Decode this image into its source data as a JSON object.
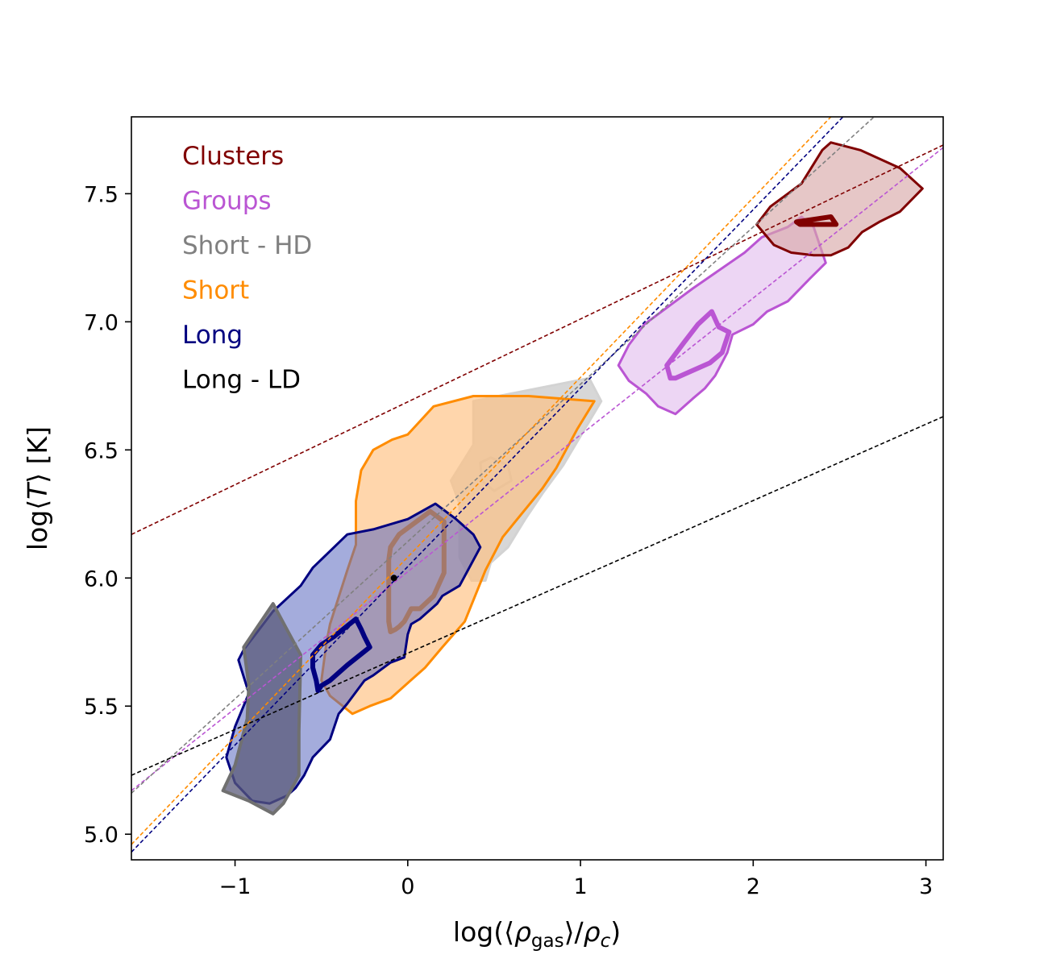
{
  "chart_data": {
    "type": "scatter",
    "xlabel": "log(⟨ρgas⟩/ρc)",
    "ylabel": "log⟨T⟩ [K]",
    "xlim": [
      -1.6,
      3.1
    ],
    "ylim": [
      4.9,
      7.8
    ],
    "xticks": [
      -1,
      0,
      1,
      2,
      3
    ],
    "xtick_labels": [
      "−1",
      "0",
      "1",
      "2",
      "3"
    ],
    "yticks": [
      5.0,
      5.5,
      6.0,
      6.5,
      7.0,
      7.5
    ],
    "ytick_labels": [
      "5.0",
      "5.5",
      "6.0",
      "6.5",
      "7.0",
      "7.5"
    ],
    "grid": false,
    "legend_position": "top-left",
    "legend": [
      {
        "label": "Clusters",
        "color": "#800000"
      },
      {
        "label": "Groups",
        "color": "#ba55d3"
      },
      {
        "label": "Short - HD",
        "color": "#808080"
      },
      {
        "label": "Short",
        "color": "#ff8c00"
      },
      {
        "label": "Long",
        "color": "#000080"
      },
      {
        "label": "Long - LD",
        "color": "#000000"
      }
    ],
    "fit_lines": [
      {
        "series": "Clusters",
        "color": "#800000",
        "points": [
          [
            -1.6,
            6.17
          ],
          [
            3.1,
            7.69
          ]
        ]
      },
      {
        "series": "Groups",
        "color": "#ba55d3",
        "points": [
          [
            -1.6,
            5.17
          ],
          [
            3.1,
            7.68
          ]
        ]
      },
      {
        "series": "Short - HD",
        "color": "#808080",
        "points": [
          [
            -1.6,
            5.16
          ],
          [
            2.7,
            7.8
          ]
        ]
      },
      {
        "series": "Short",
        "color": "#ff8c00",
        "points": [
          [
            -1.6,
            4.96
          ],
          [
            2.45,
            7.8
          ]
        ]
      },
      {
        "series": "Long",
        "color": "#000080",
        "points": [
          [
            -1.6,
            4.93
          ],
          [
            2.52,
            7.8
          ]
        ]
      },
      {
        "series": "Long - LD",
        "color": "#000000",
        "points": [
          [
            -1.6,
            5.23
          ],
          [
            3.1,
            6.63
          ]
        ]
      }
    ],
    "contours": [
      {
        "series": "Short - HD",
        "level": "outer",
        "fill": "#d3d3d3",
        "fill_opacity": 0.9,
        "stroke": "#d3d3d3",
        "stroke_width": 3,
        "points": [
          [
            0.25,
            6.38
          ],
          [
            0.38,
            6.52
          ],
          [
            0.38,
            6.69
          ],
          [
            0.6,
            6.72
          ],
          [
            1.05,
            6.78
          ],
          [
            1.12,
            6.69
          ],
          [
            0.9,
            6.44
          ],
          [
            0.78,
            6.33
          ],
          [
            0.68,
            6.23
          ],
          [
            0.58,
            6.12
          ],
          [
            0.48,
            6.06
          ],
          [
            0.45,
            5.99
          ],
          [
            0.37,
            5.99
          ],
          [
            0.3,
            6.08
          ],
          [
            0.3,
            6.29
          ]
        ]
      },
      {
        "series": "Short - HD",
        "level": "inner",
        "fill": "none",
        "stroke": "#c8c8c8",
        "stroke_width": 3,
        "points": [
          [
            0.42,
            6.45
          ],
          [
            0.48,
            6.47
          ],
          [
            0.58,
            6.44
          ],
          [
            0.6,
            6.38
          ],
          [
            0.5,
            6.34
          ],
          [
            0.43,
            6.38
          ]
        ]
      },
      {
        "series": "Short",
        "level": "outer",
        "fill": "#ffc080",
        "fill_opacity": 0.65,
        "stroke": "#ff8c00",
        "stroke_width": 3,
        "points": [
          [
            -0.27,
            6.42
          ],
          [
            -0.2,
            6.5
          ],
          [
            -0.09,
            6.54
          ],
          [
            0.0,
            6.56
          ],
          [
            0.15,
            6.67
          ],
          [
            0.38,
            6.71
          ],
          [
            0.5,
            6.71
          ],
          [
            0.7,
            6.71
          ],
          [
            1.08,
            6.69
          ],
          [
            0.98,
            6.58
          ],
          [
            0.86,
            6.43
          ],
          [
            0.78,
            6.35
          ],
          [
            0.55,
            6.16
          ],
          [
            0.45,
            6.03
          ],
          [
            0.33,
            5.83
          ],
          [
            0.2,
            5.73
          ],
          [
            0.1,
            5.65
          ],
          [
            0.0,
            5.59
          ],
          [
            -0.1,
            5.53
          ],
          [
            -0.22,
            5.5
          ],
          [
            -0.32,
            5.47
          ],
          [
            -0.45,
            5.54
          ],
          [
            -0.5,
            5.6
          ],
          [
            -0.47,
            5.75
          ],
          [
            -0.45,
            5.82
          ],
          [
            -0.35,
            6.03
          ],
          [
            -0.3,
            6.13
          ],
          [
            -0.3,
            6.3
          ]
        ]
      },
      {
        "series": "Short",
        "level": "inner",
        "fill": "none",
        "stroke": "#ff8c00",
        "stroke_width": 6,
        "points": [
          [
            -0.1,
            6.12
          ],
          [
            -0.05,
            6.17
          ],
          [
            0.05,
            6.22
          ],
          [
            0.13,
            6.26
          ],
          [
            0.21,
            6.22
          ],
          [
            0.21,
            6.02
          ],
          [
            0.15,
            5.93
          ],
          [
            0.07,
            5.88
          ],
          [
            0.02,
            5.88
          ],
          [
            -0.02,
            5.83
          ],
          [
            -0.05,
            5.81
          ],
          [
            -0.07,
            5.8
          ],
          [
            -0.1,
            5.79
          ],
          [
            -0.11,
            5.83
          ],
          [
            -0.11,
            6.07
          ]
        ]
      },
      {
        "series": "Groups",
        "level": "outer",
        "fill": "#e6c4f0",
        "fill_opacity": 0.7,
        "stroke": "#ba55d3",
        "stroke_width": 3,
        "points": [
          [
            1.22,
            6.83
          ],
          [
            1.28,
            6.91
          ],
          [
            1.37,
            6.99
          ],
          [
            1.65,
            7.13
          ],
          [
            1.95,
            7.27
          ],
          [
            2.05,
            7.33
          ],
          [
            2.2,
            7.37
          ],
          [
            2.28,
            7.41
          ],
          [
            2.35,
            7.37
          ],
          [
            2.42,
            7.23
          ],
          [
            2.33,
            7.17
          ],
          [
            2.2,
            7.08
          ],
          [
            2.08,
            7.04
          ],
          [
            2.0,
            6.99
          ],
          [
            1.88,
            6.95
          ],
          [
            1.85,
            6.88
          ],
          [
            1.78,
            6.79
          ],
          [
            1.72,
            6.74
          ],
          [
            1.65,
            6.7
          ],
          [
            1.55,
            6.64
          ],
          [
            1.45,
            6.67
          ],
          [
            1.38,
            6.72
          ],
          [
            1.28,
            6.77
          ]
        ]
      },
      {
        "series": "Groups",
        "level": "inner",
        "fill": "none",
        "stroke": "#ba55d3",
        "stroke_width": 6,
        "points": [
          [
            1.5,
            6.83
          ],
          [
            1.6,
            6.92
          ],
          [
            1.68,
            6.99
          ],
          [
            1.76,
            7.04
          ],
          [
            1.8,
            6.98
          ],
          [
            1.86,
            6.96
          ],
          [
            1.82,
            6.88
          ],
          [
            1.75,
            6.84
          ],
          [
            1.65,
            6.81
          ],
          [
            1.55,
            6.78
          ],
          [
            1.52,
            6.78
          ]
        ]
      },
      {
        "series": "Clusters",
        "level": "outer",
        "fill": "#d9a9a9",
        "fill_opacity": 0.65,
        "stroke": "#800000",
        "stroke_width": 3,
        "points": [
          [
            2.02,
            7.38
          ],
          [
            2.1,
            7.45
          ],
          [
            2.2,
            7.5
          ],
          [
            2.28,
            7.54
          ],
          [
            2.4,
            7.67
          ],
          [
            2.45,
            7.7
          ],
          [
            2.62,
            7.67
          ],
          [
            2.85,
            7.6
          ],
          [
            2.98,
            7.52
          ],
          [
            2.85,
            7.43
          ],
          [
            2.73,
            7.39
          ],
          [
            2.63,
            7.35
          ],
          [
            2.55,
            7.29
          ],
          [
            2.45,
            7.26
          ],
          [
            2.35,
            7.26
          ],
          [
            2.22,
            7.27
          ],
          [
            2.12,
            7.3
          ]
        ]
      },
      {
        "series": "Clusters",
        "level": "inner",
        "fill": "none",
        "stroke": "#800000",
        "stroke_width": 6,
        "points": [
          [
            2.25,
            7.39
          ],
          [
            2.45,
            7.41
          ],
          [
            2.48,
            7.38
          ],
          [
            2.35,
            7.38
          ],
          [
            2.27,
            7.38
          ]
        ]
      },
      {
        "series": "Long",
        "level": "outer",
        "fill": "#5a68c0",
        "fill_opacity": 0.55,
        "stroke": "#000080",
        "stroke_width": 3,
        "points": [
          [
            -0.95,
            5.72
          ],
          [
            -0.78,
            5.87
          ],
          [
            -0.62,
            5.97
          ],
          [
            -0.55,
            6.04
          ],
          [
            -0.35,
            6.17
          ],
          [
            -0.2,
            6.19
          ],
          [
            0.0,
            6.23
          ],
          [
            0.16,
            6.29
          ],
          [
            0.28,
            6.23
          ],
          [
            0.38,
            6.17
          ],
          [
            0.42,
            6.12
          ],
          [
            0.3,
            5.97
          ],
          [
            0.2,
            5.93
          ],
          [
            0.17,
            5.9
          ],
          [
            0.07,
            5.84
          ],
          [
            0.02,
            5.82
          ],
          [
            0.0,
            5.78
          ],
          [
            -0.02,
            5.69
          ],
          [
            -0.1,
            5.67
          ],
          [
            -0.2,
            5.62
          ],
          [
            -0.25,
            5.6
          ],
          [
            -0.35,
            5.51
          ],
          [
            -0.4,
            5.47
          ],
          [
            -0.45,
            5.37
          ],
          [
            -0.55,
            5.3
          ],
          [
            -0.6,
            5.23
          ],
          [
            -0.65,
            5.18
          ],
          [
            -0.7,
            5.15
          ],
          [
            -0.8,
            5.12
          ],
          [
            -0.9,
            5.13
          ],
          [
            -1.0,
            5.2
          ],
          [
            -1.05,
            5.3
          ],
          [
            -1.0,
            5.42
          ],
          [
            -0.92,
            5.55
          ],
          [
            -0.98,
            5.68
          ]
        ]
      },
      {
        "series": "Long",
        "level": "inner",
        "fill": "none",
        "stroke": "#000080",
        "stroke_width": 6,
        "points": [
          [
            -0.55,
            5.7
          ],
          [
            -0.5,
            5.74
          ],
          [
            -0.43,
            5.77
          ],
          [
            -0.3,
            5.84
          ],
          [
            -0.27,
            5.8
          ],
          [
            -0.25,
            5.77
          ],
          [
            -0.22,
            5.73
          ],
          [
            -0.35,
            5.66
          ],
          [
            -0.45,
            5.6
          ],
          [
            -0.5,
            5.58
          ],
          [
            -0.52,
            5.56
          ],
          [
            -0.53,
            5.6
          ],
          [
            -0.55,
            5.65
          ]
        ]
      },
      {
        "series": "Long - LD",
        "level": "outer",
        "fill": "#5a5a7a",
        "fill_opacity": 0.75,
        "stroke": "#707070",
        "stroke_width": 4,
        "points": [
          [
            -0.95,
            5.73
          ],
          [
            -0.78,
            5.9
          ],
          [
            -0.7,
            5.8
          ],
          [
            -0.62,
            5.7
          ],
          [
            -0.63,
            5.4
          ],
          [
            -0.63,
            5.23
          ],
          [
            -0.67,
            5.18
          ],
          [
            -0.72,
            5.12
          ],
          [
            -0.78,
            5.08
          ],
          [
            -0.92,
            5.13
          ],
          [
            -1.07,
            5.17
          ],
          [
            -1.0,
            5.27
          ],
          [
            -0.93,
            5.45
          ],
          [
            -0.92,
            5.58
          ]
        ]
      }
    ],
    "points": [
      {
        "x": -0.08,
        "y": 6.0,
        "color": "#000000"
      }
    ]
  }
}
